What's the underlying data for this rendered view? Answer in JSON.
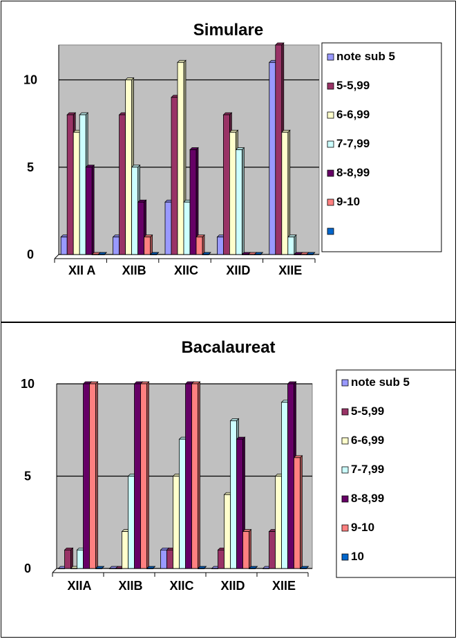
{
  "chart_data": [
    {
      "type": "bar",
      "title": "Simulare",
      "categories": [
        "XII A",
        "XIIB",
        "XIIC",
        "XIID",
        "XIIE"
      ],
      "series": [
        {
          "name": "note sub 5",
          "values": [
            1,
            1,
            3,
            1,
            11
          ]
        },
        {
          "name": "5-5,99",
          "values": [
            8,
            8,
            9,
            8,
            12
          ]
        },
        {
          "name": "6-6,99",
          "values": [
            7,
            10,
            11,
            7,
            7
          ]
        },
        {
          "name": "7-7,99",
          "values": [
            8,
            5,
            3,
            6,
            1
          ]
        },
        {
          "name": "8-8,99",
          "values": [
            5,
            3,
            6,
            0,
            0
          ]
        },
        {
          "name": "9-10",
          "values": [
            0,
            1,
            1,
            0,
            0
          ]
        },
        {
          "name": "",
          "values": [
            0,
            0,
            0,
            0,
            0
          ]
        }
      ],
      "yticks": [
        "0",
        "5",
        "10"
      ],
      "ylim": [
        0,
        12
      ],
      "legend_position": "right",
      "grid": true
    },
    {
      "type": "bar",
      "title": "Bacalaureat",
      "categories": [
        "XIIA",
        "XIIB",
        "XIIC",
        "XIID",
        "XIIE"
      ],
      "series": [
        {
          "name": "note sub 5",
          "values": [
            0,
            0,
            1,
            0,
            0
          ]
        },
        {
          "name": "5-5,99",
          "values": [
            1,
            0,
            1,
            1,
            2
          ]
        },
        {
          "name": "6-6,99",
          "values": [
            0,
            2,
            5,
            4,
            5
          ]
        },
        {
          "name": "7-7,99",
          "values": [
            1,
            5,
            7,
            8,
            9
          ]
        },
        {
          "name": "8-8,99",
          "values": [
            10,
            10,
            10,
            7,
            10
          ]
        },
        {
          "name": "9-10",
          "values": [
            10,
            10,
            10,
            2,
            6
          ]
        },
        {
          "name": "10",
          "values": [
            0,
            0,
            0,
            0,
            0
          ]
        }
      ],
      "yticks": [
        "0",
        "5",
        "10"
      ],
      "ylim": [
        0,
        10
      ],
      "legend_position": "right",
      "grid": true
    }
  ],
  "colors": {
    "series_fill": [
      "#9999FF",
      "#993366",
      "#FFFFCC",
      "#CCFFFF",
      "#660066",
      "#FF8080",
      "#0066CC"
    ],
    "plot_background": "#C0C0C0",
    "gridline": "#000000"
  }
}
